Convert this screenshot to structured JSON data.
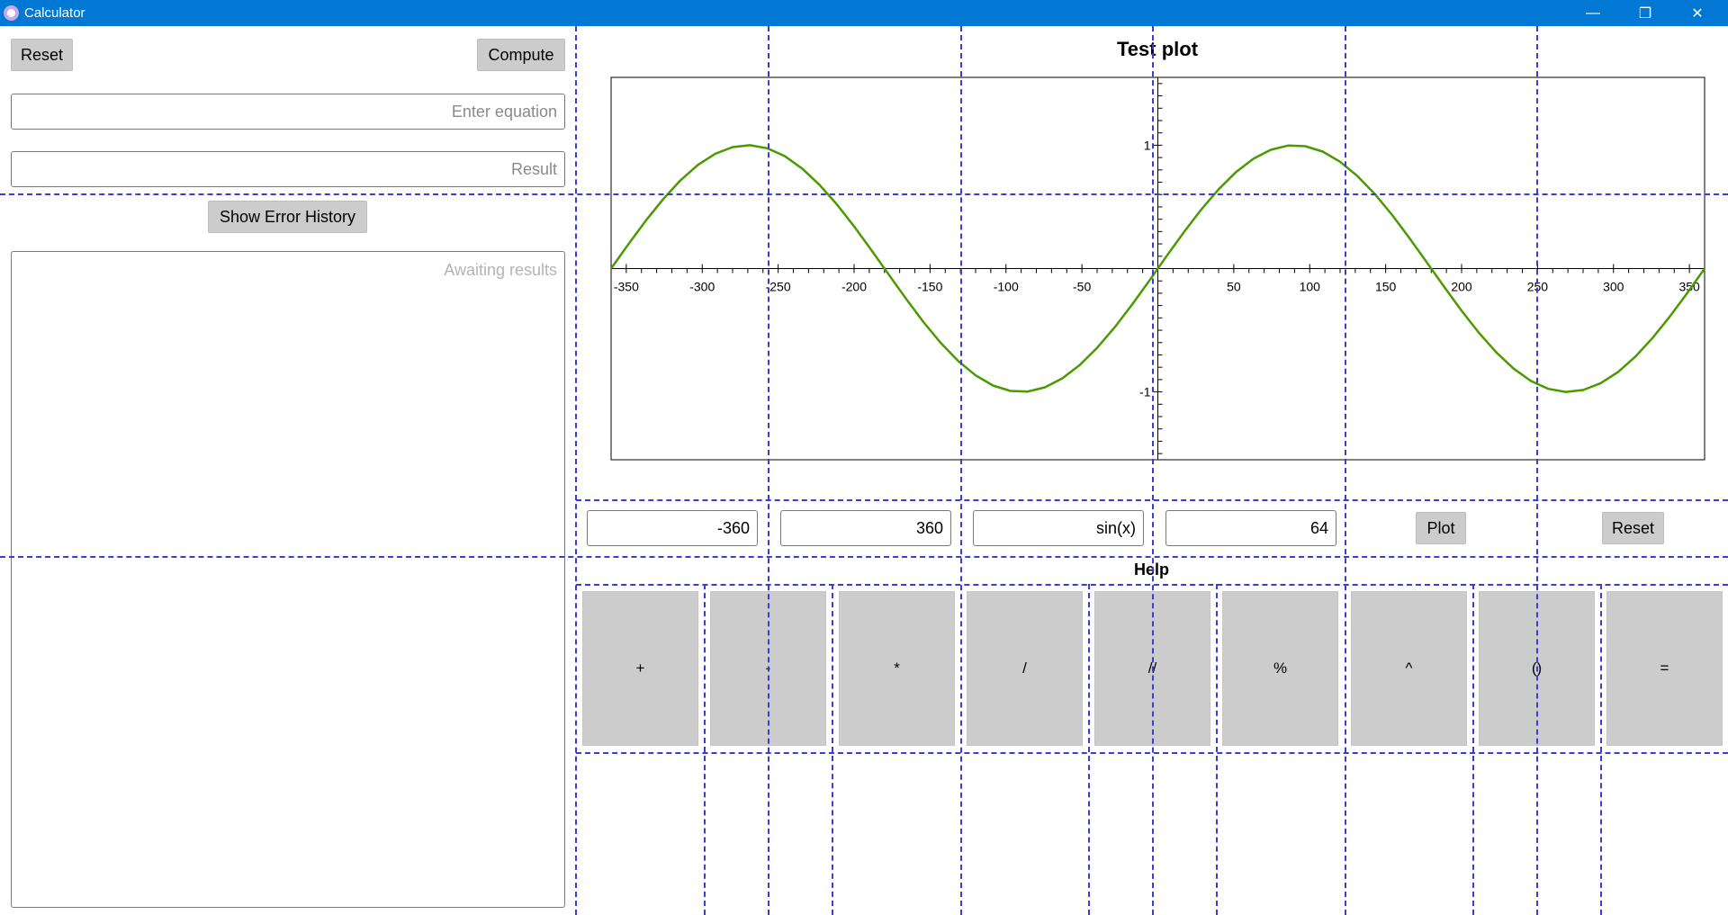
{
  "window": {
    "title": "Calculator",
    "controls": [
      "—",
      "❐",
      "✕"
    ]
  },
  "left_panel": {
    "reset_label": "Reset",
    "compute_label": "Compute",
    "equation_placeholder": "Enter equation",
    "result_placeholder": "Result",
    "error_history_label": "Show Error History",
    "results_placeholder": "Awaiting results"
  },
  "plot": {
    "title": "Test plot",
    "min_value": "-360",
    "max_value": "360",
    "function_value": "sin(x)",
    "points_value": "64",
    "plot_label": "Plot",
    "reset_label": "Reset"
  },
  "chart_data": {
    "type": "line",
    "title": "",
    "xlabel": "",
    "ylabel": "",
    "xlim": [
      -360,
      360
    ],
    "ylim": [
      -1.55,
      1.55
    ],
    "x_ticks": [
      -350,
      -300,
      -250,
      -200,
      -150,
      -100,
      -50,
      50,
      100,
      150,
      200,
      250,
      300,
      350
    ],
    "y_ticks": [
      1,
      -1
    ],
    "series": [
      {
        "function": "sin(x)",
        "x_unit": "degrees",
        "samples": 64,
        "color": "#4a9a00"
      }
    ],
    "grid": false
  },
  "keypad": {
    "title": "Help",
    "keys": [
      "+",
      "-",
      "*",
      "/",
      "//",
      "%",
      "^",
      "()",
      "="
    ]
  },
  "colors": {
    "titlebar": "#0078d4",
    "button": "#cccccc",
    "curve": "#4a9a00",
    "guides": "#3b3bd6"
  }
}
